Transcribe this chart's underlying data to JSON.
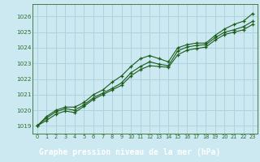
{
  "title": "Graphe pression niveau de la mer (hPa)",
  "background_color": "#cce8f0",
  "label_bar_color": "#2d6e2d",
  "grid_color": "#aad4e0",
  "line_color": "#1a5c1a",
  "marker_color": "#1a5c1a",
  "label_text_color": "#ffffff",
  "tick_color": "#2d6e2d",
  "xlim": [
    -0.5,
    23.5
  ],
  "ylim": [
    1018.5,
    1026.8
  ],
  "xticks": [
    0,
    1,
    2,
    3,
    4,
    5,
    6,
    7,
    8,
    9,
    10,
    11,
    12,
    13,
    14,
    15,
    16,
    17,
    18,
    19,
    20,
    21,
    22,
    23
  ],
  "yticks": [
    1019,
    1020,
    1021,
    1022,
    1023,
    1024,
    1025,
    1026
  ],
  "series1": [
    1019.0,
    1019.6,
    1020.0,
    1020.2,
    1020.2,
    1020.5,
    1021.0,
    1021.3,
    1021.8,
    1022.2,
    1022.8,
    1023.3,
    1023.5,
    1023.3,
    1023.1,
    1024.0,
    1024.2,
    1024.3,
    1024.3,
    1024.8,
    1025.2,
    1025.5,
    1025.7,
    1026.2
  ],
  "series2": [
    1019.0,
    1019.5,
    1019.9,
    1020.1,
    1020.0,
    1020.35,
    1020.8,
    1021.1,
    1021.4,
    1021.75,
    1022.4,
    1022.8,
    1023.1,
    1022.95,
    1022.85,
    1023.8,
    1024.05,
    1024.15,
    1024.2,
    1024.65,
    1025.0,
    1025.15,
    1025.35,
    1025.7
  ],
  "series3": [
    1019.0,
    1019.35,
    1019.75,
    1019.95,
    1019.85,
    1020.25,
    1020.7,
    1021.0,
    1021.3,
    1021.6,
    1022.2,
    1022.6,
    1022.85,
    1022.8,
    1022.75,
    1023.55,
    1023.85,
    1023.95,
    1024.05,
    1024.5,
    1024.85,
    1025.0,
    1025.15,
    1025.5
  ]
}
